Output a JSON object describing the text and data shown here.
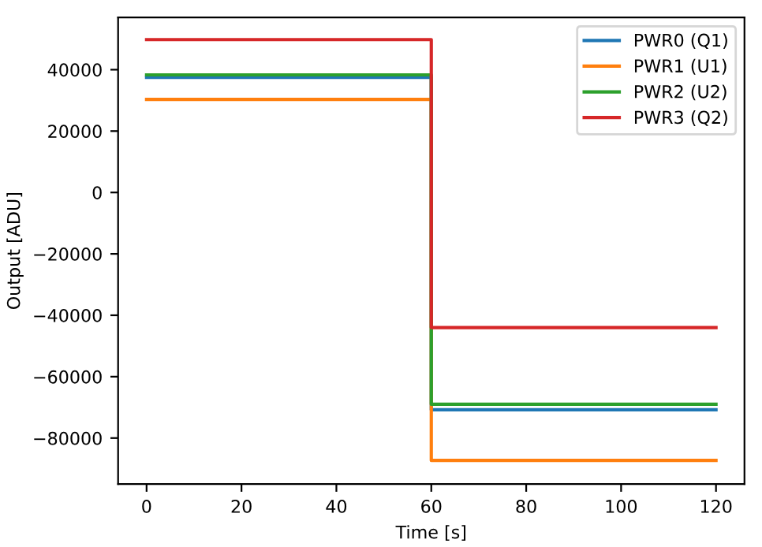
{
  "chart_data": {
    "type": "line",
    "xlabel": "Time [s]",
    "ylabel": "Output [ADU]",
    "x": [
      0,
      60,
      60,
      120
    ],
    "series": [
      {
        "name": "PWR0 (Q1)",
        "color": "#1f77b4",
        "values": [
          37500,
          37500,
          -70800,
          -70800
        ]
      },
      {
        "name": "PWR1 (U1)",
        "color": "#ff7f0e",
        "values": [
          30300,
          30300,
          -87300,
          -87300
        ]
      },
      {
        "name": "PWR2 (U2)",
        "color": "#2ca02c",
        "values": [
          38300,
          38300,
          -69000,
          -69000
        ]
      },
      {
        "name": "PWR3 (Q2)",
        "color": "#d62728",
        "values": [
          49800,
          49800,
          -44000,
          -44000
        ]
      }
    ],
    "xlim": [
      -6,
      126
    ],
    "xticks": [
      0,
      20,
      40,
      60,
      80,
      100,
      120
    ],
    "ylim": [
      -95000,
      57000
    ],
    "yticks": [
      {
        "value": -80000,
        "label": "−80000"
      },
      {
        "value": -60000,
        "label": "−60000"
      },
      {
        "value": -40000,
        "label": "−40000"
      },
      {
        "value": -20000,
        "label": "−20000"
      },
      0,
      20000,
      40000
    ],
    "legend": "top right",
    "grid": false
  }
}
